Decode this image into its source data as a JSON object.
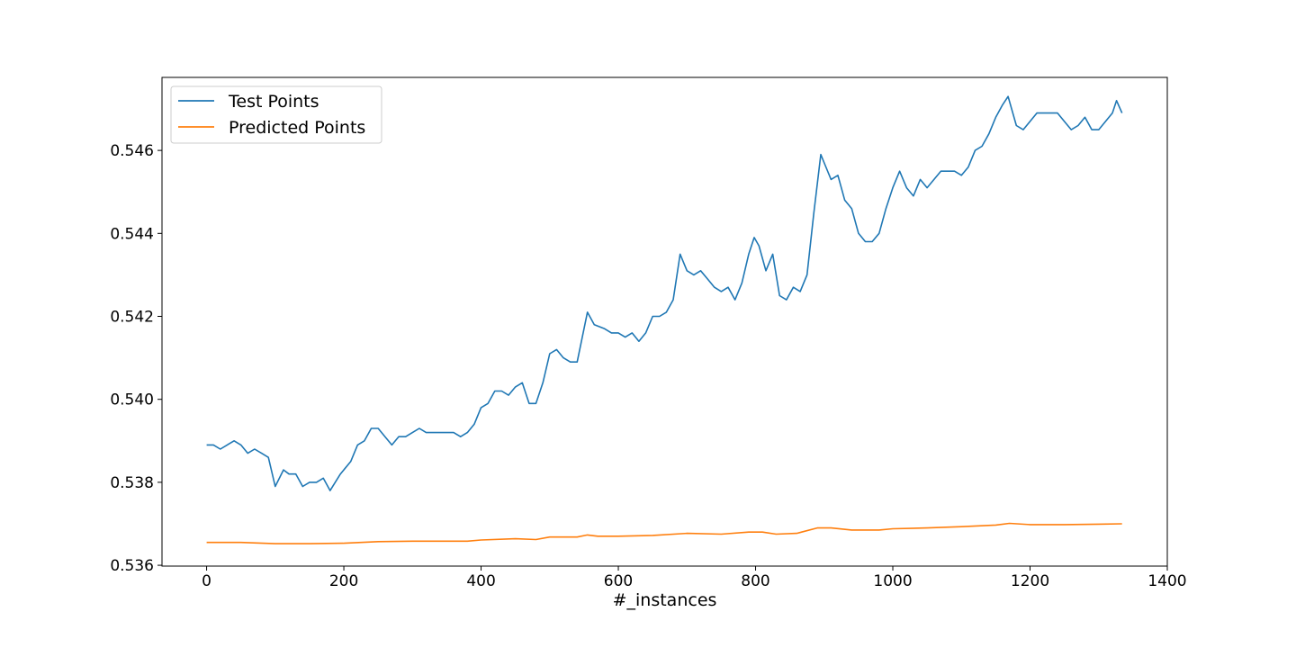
{
  "chart_data": {
    "type": "line",
    "title": "",
    "xlabel": "#_instances",
    "ylabel": "",
    "xlim": [
      -65,
      1400
    ],
    "ylim": [
      0.53598,
      0.54776
    ],
    "xticks": [
      0,
      200,
      400,
      600,
      800,
      1000,
      1200,
      1400
    ],
    "xtick_labels": [
      "0",
      "200",
      "400",
      "600",
      "800",
      "1000",
      "1200",
      "1400"
    ],
    "yticks": [
      0.536,
      0.538,
      0.54,
      0.542,
      0.544,
      0.546
    ],
    "ytick_labels": [
      "0.536",
      "0.538",
      "0.540",
      "0.542",
      "0.544",
      "0.546"
    ],
    "grid": false,
    "legend": {
      "position": "top-left"
    },
    "series": [
      {
        "name": "Test Points",
        "color": "#1f77b4",
        "points": [
          [
            0,
            0.5389
          ],
          [
            10,
            0.5389
          ],
          [
            20,
            0.5388
          ],
          [
            30,
            0.5389
          ],
          [
            40,
            0.539
          ],
          [
            50,
            0.5389
          ],
          [
            60,
            0.5387
          ],
          [
            70,
            0.5388
          ],
          [
            80,
            0.5387
          ],
          [
            90,
            0.5386
          ],
          [
            100,
            0.5379
          ],
          [
            112,
            0.5383
          ],
          [
            120,
            0.5382
          ],
          [
            130,
            0.5382
          ],
          [
            140,
            0.5379
          ],
          [
            150,
            0.538
          ],
          [
            160,
            0.538
          ],
          [
            170,
            0.5381
          ],
          [
            180,
            0.5378
          ],
          [
            195,
            0.5382
          ],
          [
            210,
            0.5385
          ],
          [
            220,
            0.5389
          ],
          [
            230,
            0.539
          ],
          [
            240,
            0.5393
          ],
          [
            250,
            0.5393
          ],
          [
            260,
            0.5391
          ],
          [
            270,
            0.5389
          ],
          [
            280,
            0.5391
          ],
          [
            290,
            0.5391
          ],
          [
            300,
            0.5392
          ],
          [
            310,
            0.5393
          ],
          [
            320,
            0.5392
          ],
          [
            330,
            0.5392
          ],
          [
            340,
            0.5392
          ],
          [
            350,
            0.5392
          ],
          [
            360,
            0.5392
          ],
          [
            370,
            0.5391
          ],
          [
            380,
            0.5392
          ],
          [
            390,
            0.5394
          ],
          [
            400,
            0.5398
          ],
          [
            410,
            0.5399
          ],
          [
            420,
            0.5402
          ],
          [
            430,
            0.5402
          ],
          [
            440,
            0.5401
          ],
          [
            450,
            0.5403
          ],
          [
            460,
            0.5404
          ],
          [
            470,
            0.5399
          ],
          [
            480,
            0.5399
          ],
          [
            490,
            0.5404
          ],
          [
            500,
            0.5411
          ],
          [
            510,
            0.5412
          ],
          [
            520,
            0.541
          ],
          [
            530,
            0.5409
          ],
          [
            540,
            0.5409
          ],
          [
            550,
            0.5417
          ],
          [
            555,
            0.5421
          ],
          [
            565,
            0.5418
          ],
          [
            580,
            0.5417
          ],
          [
            590,
            0.5416
          ],
          [
            600,
            0.5416
          ],
          [
            610,
            0.5415
          ],
          [
            620,
            0.5416
          ],
          [
            630,
            0.5414
          ],
          [
            640,
            0.5416
          ],
          [
            650,
            0.542
          ],
          [
            660,
            0.542
          ],
          [
            670,
            0.5421
          ],
          [
            680,
            0.5424
          ],
          [
            690,
            0.5435
          ],
          [
            700,
            0.5431
          ],
          [
            710,
            0.543
          ],
          [
            720,
            0.5431
          ],
          [
            730,
            0.5429
          ],
          [
            740,
            0.5427
          ],
          [
            750,
            0.5426
          ],
          [
            760,
            0.5427
          ],
          [
            770,
            0.5424
          ],
          [
            780,
            0.5428
          ],
          [
            790,
            0.5435
          ],
          [
            798,
            0.5439
          ],
          [
            805,
            0.5437
          ],
          [
            815,
            0.5431
          ],
          [
            825,
            0.5435
          ],
          [
            835,
            0.5425
          ],
          [
            845,
            0.5424
          ],
          [
            855,
            0.5427
          ],
          [
            865,
            0.5426
          ],
          [
            875,
            0.543
          ],
          [
            885,
            0.5445
          ],
          [
            895,
            0.5459
          ],
          [
            900,
            0.5457
          ],
          [
            910,
            0.5453
          ],
          [
            920,
            0.5454
          ],
          [
            930,
            0.5448
          ],
          [
            940,
            0.5446
          ],
          [
            950,
            0.544
          ],
          [
            960,
            0.5438
          ],
          [
            970,
            0.5438
          ],
          [
            980,
            0.544
          ],
          [
            990,
            0.5446
          ],
          [
            1000,
            0.5451
          ],
          [
            1010,
            0.5455
          ],
          [
            1020,
            0.5451
          ],
          [
            1030,
            0.5449
          ],
          [
            1040,
            0.5453
          ],
          [
            1050,
            0.5451
          ],
          [
            1060,
            0.5453
          ],
          [
            1070,
            0.5455
          ],
          [
            1080,
            0.5455
          ],
          [
            1090,
            0.5455
          ],
          [
            1100,
            0.5454
          ],
          [
            1110,
            0.5456
          ],
          [
            1120,
            0.546
          ],
          [
            1130,
            0.5461
          ],
          [
            1140,
            0.5464
          ],
          [
            1150,
            0.5468
          ],
          [
            1160,
            0.5471
          ],
          [
            1168,
            0.5473
          ],
          [
            1180,
            0.5466
          ],
          [
            1190,
            0.5465
          ],
          [
            1200,
            0.5467
          ],
          [
            1210,
            0.5469
          ],
          [
            1220,
            0.5469
          ],
          [
            1230,
            0.5469
          ],
          [
            1240,
            0.5469
          ],
          [
            1250,
            0.5467
          ],
          [
            1260,
            0.5465
          ],
          [
            1270,
            0.5466
          ],
          [
            1280,
            0.5468
          ],
          [
            1290,
            0.5465
          ],
          [
            1300,
            0.5465
          ],
          [
            1310,
            0.5467
          ],
          [
            1320,
            0.5469
          ],
          [
            1326,
            0.5472
          ],
          [
            1334,
            0.5469
          ]
        ]
      },
      {
        "name": "Predicted Points",
        "color": "#ff7f0e",
        "points": [
          [
            0,
            0.53655
          ],
          [
            50,
            0.53655
          ],
          [
            100,
            0.53652
          ],
          [
            150,
            0.53652
          ],
          [
            200,
            0.53653
          ],
          [
            250,
            0.53657
          ],
          [
            300,
            0.53658
          ],
          [
            350,
            0.53658
          ],
          [
            380,
            0.53658
          ],
          [
            400,
            0.53661
          ],
          [
            450,
            0.53664
          ],
          [
            480,
            0.53662
          ],
          [
            500,
            0.53668
          ],
          [
            540,
            0.53668
          ],
          [
            555,
            0.53673
          ],
          [
            570,
            0.5367
          ],
          [
            600,
            0.5367
          ],
          [
            650,
            0.53672
          ],
          [
            700,
            0.53677
          ],
          [
            750,
            0.53675
          ],
          [
            790,
            0.5368
          ],
          [
            810,
            0.5368
          ],
          [
            830,
            0.53675
          ],
          [
            860,
            0.53677
          ],
          [
            890,
            0.5369
          ],
          [
            910,
            0.5369
          ],
          [
            940,
            0.53685
          ],
          [
            980,
            0.53685
          ],
          [
            1000,
            0.53688
          ],
          [
            1050,
            0.5369
          ],
          [
            1100,
            0.53693
          ],
          [
            1150,
            0.53697
          ],
          [
            1170,
            0.53701
          ],
          [
            1200,
            0.53698
          ],
          [
            1250,
            0.53698
          ],
          [
            1300,
            0.53699
          ],
          [
            1334,
            0.537
          ]
        ]
      }
    ]
  }
}
